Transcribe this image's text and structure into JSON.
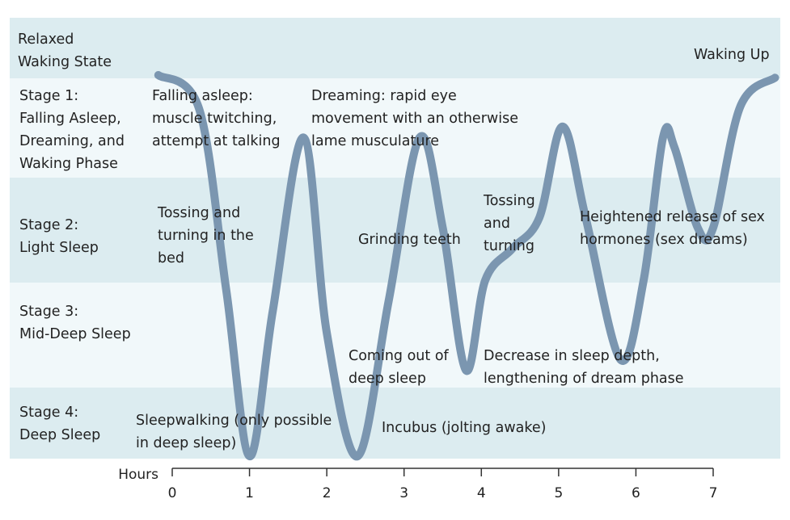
{
  "colors": {
    "band_dark": "#dcecf0",
    "band_light": "#f1f8fa",
    "curve": "#7b96b0",
    "axis": "#333333"
  },
  "stages": [
    {
      "id": "waking",
      "label": "Relaxed\nWaking State"
    },
    {
      "id": "stage1",
      "label": "Stage 1:\nFalling Asleep,\nDreaming, and\nWaking Phase"
    },
    {
      "id": "stage2",
      "label": "Stage 2:\nLight Sleep"
    },
    {
      "id": "stage3",
      "label": "Stage 3:\nMid-Deep Sleep"
    },
    {
      "id": "stage4",
      "label": "Stage 4:\nDeep Sleep"
    }
  ],
  "annotations": {
    "waking_up": "Waking Up",
    "falling_asleep": "Falling asleep:\nmuscle twitching,\nattempt at talking",
    "dreaming": "Dreaming: rapid eye\nmovement with an otherwise\nlame musculature",
    "tossing_bed": "Tossing and\nturning in the\nbed",
    "grinding": "Grinding teeth",
    "tossing": "Tossing\nand\nturning",
    "sex_hormones": "Heightened release of sex\nhormones (sex dreams)",
    "coming_out": "Coming out of\ndeep sleep",
    "decrease": "Decrease in sleep depth,\nlengthening of dream phase",
    "sleepwalking": "Sleepwalking (only possible\nin deep sleep)",
    "incubus": "Incubus (jolting awake)"
  },
  "chart_data": {
    "type": "line",
    "xlabel": "Hours",
    "ylabel": "",
    "xlim": [
      0,
      7
    ],
    "x_ticks": [
      0,
      1,
      2,
      3,
      4,
      5,
      6,
      7
    ],
    "y_scale": "sleep depth (0 = relaxed waking, 1 = stage 1, 2 = stage 2, 3 = stage 3, 4 = stage 4)",
    "series": [
      {
        "points": [
          [
            -0.18,
            0.0
          ],
          [
            0.35,
            0.65
          ],
          [
            0.7,
            2.6
          ],
          [
            1.0,
            4.15
          ],
          [
            1.3,
            2.8
          ],
          [
            1.7,
            1.1
          ],
          [
            2.0,
            3.0
          ],
          [
            2.4,
            4.15
          ],
          [
            2.8,
            2.7
          ],
          [
            3.2,
            1.1
          ],
          [
            3.5,
            2.0
          ],
          [
            3.8,
            3.35
          ],
          [
            4.05,
            2.5
          ],
          [
            4.4,
            2.2
          ],
          [
            4.75,
            1.9
          ],
          [
            5.05,
            0.98
          ],
          [
            5.35,
            1.9
          ],
          [
            5.8,
            3.25
          ],
          [
            6.1,
            2.5
          ],
          [
            6.35,
            1.1
          ],
          [
            6.5,
            1.2
          ],
          [
            6.8,
            2.0
          ],
          [
            7.0,
            2.0
          ],
          [
            7.35,
            0.6
          ],
          [
            7.8,
            0.05
          ]
        ]
      }
    ]
  }
}
